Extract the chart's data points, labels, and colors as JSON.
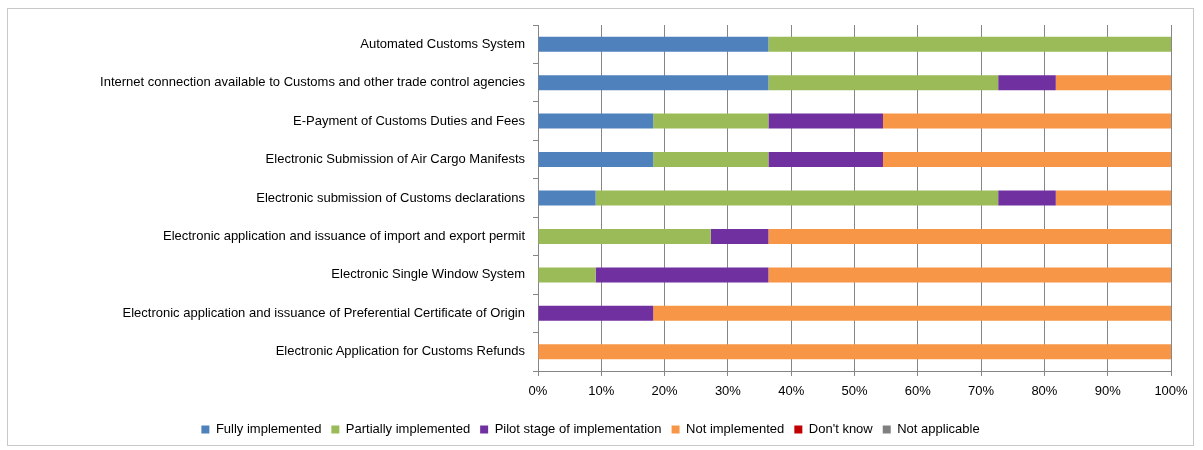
{
  "chart_data": {
    "type": "bar",
    "orientation": "horizontal",
    "stacked": true,
    "categories": [
      "Automated Customs System",
      "Internet connection available to Customs and other trade control agencies",
      "E-Payment of Customs Duties and Fees",
      "Electronic Submission of Air Cargo Manifests",
      "Electronic submission of Customs declarations",
      "Electronic application and issuance of import and export permit",
      "Electronic Single Window System",
      "Electronic application and issuance of Preferential Certificate of Origin",
      "Electronic Application for Customs Refunds"
    ],
    "series": [
      {
        "name": "Fully implemented",
        "color": "#4f81bd",
        "values": [
          36.4,
          36.4,
          18.2,
          18.2,
          9.1,
          0,
          0,
          0,
          0
        ]
      },
      {
        "name": "Partially implemented",
        "color": "#9bbb59",
        "values": [
          63.6,
          36.3,
          18.2,
          18.2,
          63.6,
          27.3,
          9.1,
          0,
          0
        ]
      },
      {
        "name": "Pilot stage of implementation",
        "color": "#7030a0",
        "values": [
          0,
          9.1,
          18.1,
          18.1,
          9.1,
          9.1,
          27.3,
          18.2,
          0
        ]
      },
      {
        "name": "Not implemented",
        "color": "#f79646",
        "values": [
          0,
          18.2,
          45.5,
          45.5,
          18.2,
          63.6,
          63.6,
          81.8,
          100
        ]
      },
      {
        "name": "Don't know",
        "color": "#c00000",
        "values": [
          0,
          0,
          0,
          0,
          0,
          0,
          0,
          0,
          0
        ]
      },
      {
        "name": "Not applicable",
        "color": "#808080",
        "values": [
          0,
          0,
          0,
          0,
          0,
          0,
          0,
          0,
          0
        ]
      }
    ],
    "xlim": [
      0,
      100
    ],
    "xticks": [
      {
        "value": 0,
        "label": "0%"
      },
      {
        "value": 10,
        "label": "10%"
      },
      {
        "value": 20,
        "label": "20%"
      },
      {
        "value": 30,
        "label": "30%"
      },
      {
        "value": 40,
        "label": "40%"
      },
      {
        "value": 50,
        "label": "50%"
      },
      {
        "value": 60,
        "label": "60%"
      },
      {
        "value": 70,
        "label": "70%"
      },
      {
        "value": 80,
        "label": "80%"
      },
      {
        "value": 90,
        "label": "90%"
      },
      {
        "value": 100,
        "label": "100%"
      }
    ],
    "grid": "x",
    "legend": "bottom"
  }
}
